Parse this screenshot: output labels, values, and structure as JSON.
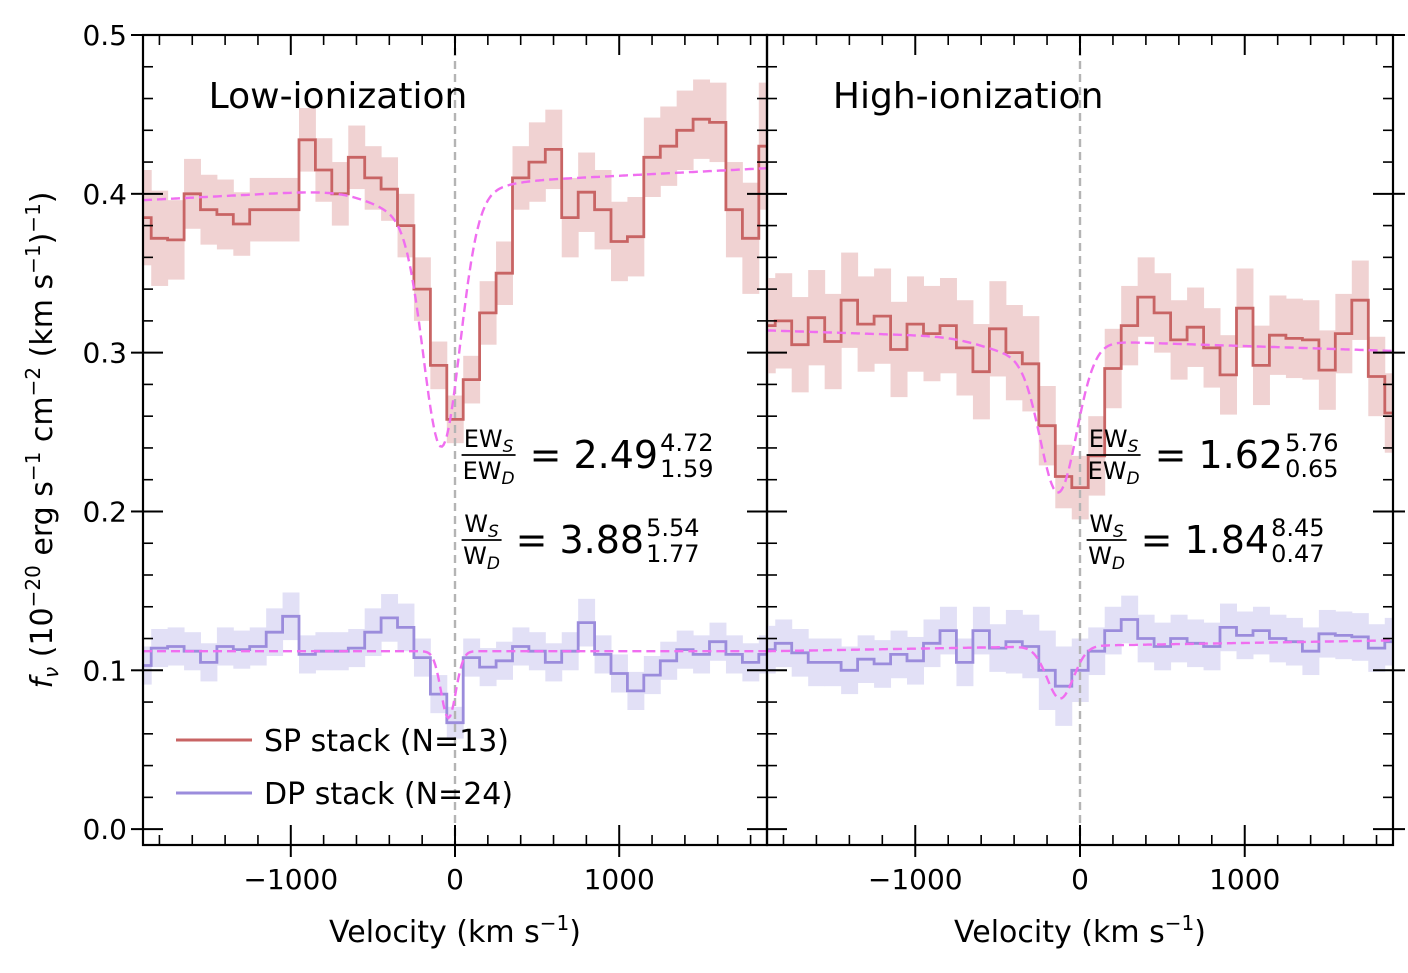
{
  "chart_data": [
    {
      "type": "line",
      "title": "Low-ionization",
      "xlabel": "Velocity (km s⁻¹)",
      "ylabel": "f_ν (10⁻²⁰ erg s⁻¹ cm⁻² (km s⁻¹)⁻¹)",
      "xlim": [
        -1900,
        1900
      ],
      "ylim": [
        -0.01,
        0.5
      ],
      "xticks": [
        -1000,
        0,
        1000
      ],
      "xtick_labels": [
        "−1000",
        "0",
        "1000"
      ],
      "yticks": [
        0.0,
        0.1,
        0.2,
        0.3,
        0.4,
        0.5
      ],
      "ytick_labels": [
        "0.0",
        "0.1",
        "0.2",
        "0.3",
        "0.4",
        "0.5"
      ],
      "vline_x": 0,
      "legend_position": "lower-left",
      "legend": [
        {
          "label": "SP stack (N=13)",
          "color": "#c86464"
        },
        {
          "label": "DP stack (N=24)",
          "color": "#9b8cdc"
        }
      ],
      "annotations": [
        {
          "num": "EW",
          "den": "EW",
          "num_sub": "S",
          "den_sub": "D",
          "value": "2.49",
          "sup": "4.72",
          "sub": "1.59"
        },
        {
          "num": "W",
          "den": "W",
          "num_sub": "S",
          "den_sub": "D",
          "value": "3.88",
          "sup": "5.54",
          "sub": "1.77"
        }
      ],
      "x": [
        -1900,
        -1800,
        -1700,
        -1600,
        -1500,
        -1400,
        -1300,
        -1200,
        -1100,
        -1000,
        -900,
        -800,
        -700,
        -600,
        -500,
        -400,
        -300,
        -200,
        -100,
        0,
        100,
        200,
        300,
        400,
        500,
        600,
        700,
        800,
        900,
        1000,
        1100,
        1200,
        1300,
        1400,
        1500,
        1600,
        1700,
        1800,
        1900
      ],
      "series": [
        {
          "name": "SP stack (N=13)",
          "role": "stack",
          "color": "#c86464",
          "band_color": "#f0d2d2",
          "values": [
            0.385,
            0.372,
            0.371,
            0.4,
            0.39,
            0.387,
            0.381,
            0.39,
            0.39,
            0.39,
            0.434,
            0.415,
            0.4,
            0.423,
            0.41,
            0.403,
            0.38,
            0.34,
            0.292,
            0.258,
            0.283,
            0.325,
            0.35,
            0.41,
            0.42,
            0.428,
            0.385,
            0.401,
            0.39,
            0.37,
            0.373,
            0.423,
            0.43,
            0.44,
            0.447,
            0.445,
            0.39,
            0.372,
            0.43
          ],
          "errors": [
            0.03,
            0.03,
            0.025,
            0.022,
            0.022,
            0.022,
            0.02,
            0.02,
            0.02,
            0.02,
            0.02,
            0.02,
            0.02,
            0.02,
            0.02,
            0.02,
            0.02,
            0.02,
            0.015,
            0.015,
            0.015,
            0.02,
            0.02,
            0.02,
            0.025,
            0.025,
            0.025,
            0.025,
            0.025,
            0.025,
            0.025,
            0.025,
            0.025,
            0.025,
            0.025,
            0.025,
            0.03,
            0.035,
            0.04
          ]
        },
        {
          "name": "",
          "role": "fit",
          "color": "#f06ef0",
          "profile": {
            "continuum_start": 0.396,
            "continuum_slope": 5.3e-06,
            "centers": [
              -80
            ],
            "depths": [
              0.147
            ],
            "sigmas": [
              110
            ],
            "wing_center": -200,
            "wing_amp": 0.02,
            "wing_sigma": 250
          }
        },
        {
          "name": "DP stack (N=24)",
          "role": "stack",
          "color": "#9b8cdc",
          "band_color": "#e2e0f6",
          "values": [
            0.103,
            0.114,
            0.115,
            0.112,
            0.105,
            0.115,
            0.113,
            0.115,
            0.124,
            0.134,
            0.11,
            0.112,
            0.112,
            0.114,
            0.124,
            0.133,
            0.127,
            0.108,
            0.085,
            0.067,
            0.108,
            0.102,
            0.106,
            0.115,
            0.112,
            0.105,
            0.112,
            0.13,
            0.11,
            0.098,
            0.087,
            0.097,
            0.106,
            0.113,
            0.11,
            0.118,
            0.11,
            0.105,
            0.11
          ],
          "errors": [
            0.012,
            0.012,
            0.012,
            0.012,
            0.012,
            0.012,
            0.012,
            0.012,
            0.015,
            0.015,
            0.012,
            0.012,
            0.012,
            0.012,
            0.015,
            0.015,
            0.015,
            0.012,
            0.012,
            0.01,
            0.012,
            0.012,
            0.012,
            0.012,
            0.012,
            0.012,
            0.012,
            0.015,
            0.012,
            0.012,
            0.012,
            0.012,
            0.012,
            0.012,
            0.012,
            0.012,
            0.012,
            0.012,
            0.012
          ]
        },
        {
          "name": "",
          "role": "fit",
          "color": "#f06ef0",
          "profile": {
            "continuum_start": 0.112,
            "continuum_slope": 0.0,
            "centers": [
              -40
            ],
            "depths": [
              0.042
            ],
            "sigmas": [
              45
            ],
            "wing_center": 0,
            "wing_amp": 0,
            "wing_sigma": 100
          }
        }
      ]
    },
    {
      "type": "line",
      "title": "High-ionization",
      "xlabel": "Velocity (km s⁻¹)",
      "ylabel": "",
      "xlim": [
        -1900,
        1900
      ],
      "ylim": [
        -0.01,
        0.5
      ],
      "xticks": [
        -1000,
        0,
        1000
      ],
      "xtick_labels": [
        "−1000",
        "0",
        "1000"
      ],
      "yticks": [
        0.0,
        0.1,
        0.2,
        0.3,
        0.4,
        0.5
      ],
      "vline_x": 0,
      "annotations": [
        {
          "num": "EW",
          "den": "EW",
          "num_sub": "S",
          "den_sub": "D",
          "value": "1.62",
          "sup": "5.76",
          "sub": "0.65"
        },
        {
          "num": "W",
          "den": "W",
          "num_sub": "S",
          "den_sub": "D",
          "value": "1.84",
          "sup": "8.45",
          "sub": "0.47"
        }
      ],
      "x": [
        -1900,
        -1800,
        -1700,
        -1600,
        -1500,
        -1400,
        -1300,
        -1200,
        -1100,
        -1000,
        -900,
        -800,
        -700,
        -600,
        -500,
        -400,
        -300,
        -200,
        -100,
        0,
        100,
        200,
        300,
        400,
        500,
        600,
        700,
        800,
        900,
        1000,
        1100,
        1200,
        1300,
        1400,
        1500,
        1600,
        1700,
        1800,
        1900
      ],
      "series": [
        {
          "name": "",
          "role": "stack",
          "color": "#c86464",
          "band_color": "#f0d2d2",
          "values": [
            0.317,
            0.32,
            0.305,
            0.322,
            0.307,
            0.333,
            0.318,
            0.323,
            0.302,
            0.318,
            0.312,
            0.317,
            0.303,
            0.288,
            0.315,
            0.3,
            0.293,
            0.254,
            0.222,
            0.215,
            0.235,
            0.29,
            0.317,
            0.335,
            0.325,
            0.308,
            0.316,
            0.303,
            0.286,
            0.328,
            0.292,
            0.311,
            0.309,
            0.308,
            0.289,
            0.312,
            0.333,
            0.285,
            0.262
          ],
          "errors": [
            0.03,
            0.03,
            0.03,
            0.03,
            0.03,
            0.03,
            0.03,
            0.03,
            0.03,
            0.03,
            0.03,
            0.03,
            0.03,
            0.03,
            0.03,
            0.03,
            0.03,
            0.025,
            0.02,
            0.02,
            0.025,
            0.025,
            0.025,
            0.025,
            0.025,
            0.025,
            0.025,
            0.025,
            0.025,
            0.025,
            0.025,
            0.025,
            0.025,
            0.025,
            0.025,
            0.025,
            0.025,
            0.025,
            0.025
          ]
        },
        {
          "name": "",
          "role": "fit",
          "color": "#f06ef0",
          "profile": {
            "continuum_start": 0.314,
            "continuum_slope": -3.4e-06,
            "centers": [
              -130
            ],
            "depths": [
              0.09
            ],
            "sigmas": [
              110
            ],
            "wing_center": -350,
            "wing_amp": 0.01,
            "wing_sigma": 220
          }
        },
        {
          "name": "",
          "role": "stack",
          "color": "#9b8cdc",
          "band_color": "#e2e0f6",
          "values": [
            0.113,
            0.117,
            0.111,
            0.105,
            0.105,
            0.1,
            0.107,
            0.104,
            0.11,
            0.106,
            0.117,
            0.125,
            0.105,
            0.125,
            0.114,
            0.118,
            0.115,
            0.1,
            0.09,
            0.1,
            0.112,
            0.125,
            0.132,
            0.12,
            0.115,
            0.12,
            0.117,
            0.115,
            0.127,
            0.122,
            0.125,
            0.12,
            0.118,
            0.112,
            0.123,
            0.122,
            0.121,
            0.114,
            0.118
          ],
          "errors": [
            0.015,
            0.015,
            0.015,
            0.015,
            0.015,
            0.015,
            0.015,
            0.015,
            0.015,
            0.015,
            0.015,
            0.015,
            0.015,
            0.015,
            0.015,
            0.02,
            0.02,
            0.025,
            0.025,
            0.02,
            0.015,
            0.015,
            0.015,
            0.015,
            0.015,
            0.015,
            0.015,
            0.015,
            0.015,
            0.015,
            0.015,
            0.015,
            0.015,
            0.015,
            0.015,
            0.015,
            0.015,
            0.015,
            0.015
          ]
        },
        {
          "name": "",
          "role": "fit",
          "color": "#f06ef0",
          "profile": {
            "continuum_start": 0.112,
            "continuum_slope": 1.8e-06,
            "centers": [
              -120
            ],
            "depths": [
              0.033
            ],
            "sigmas": [
              80
            ],
            "wing_center": 0,
            "wing_amp": 0,
            "wing_sigma": 100
          }
        }
      ]
    }
  ]
}
